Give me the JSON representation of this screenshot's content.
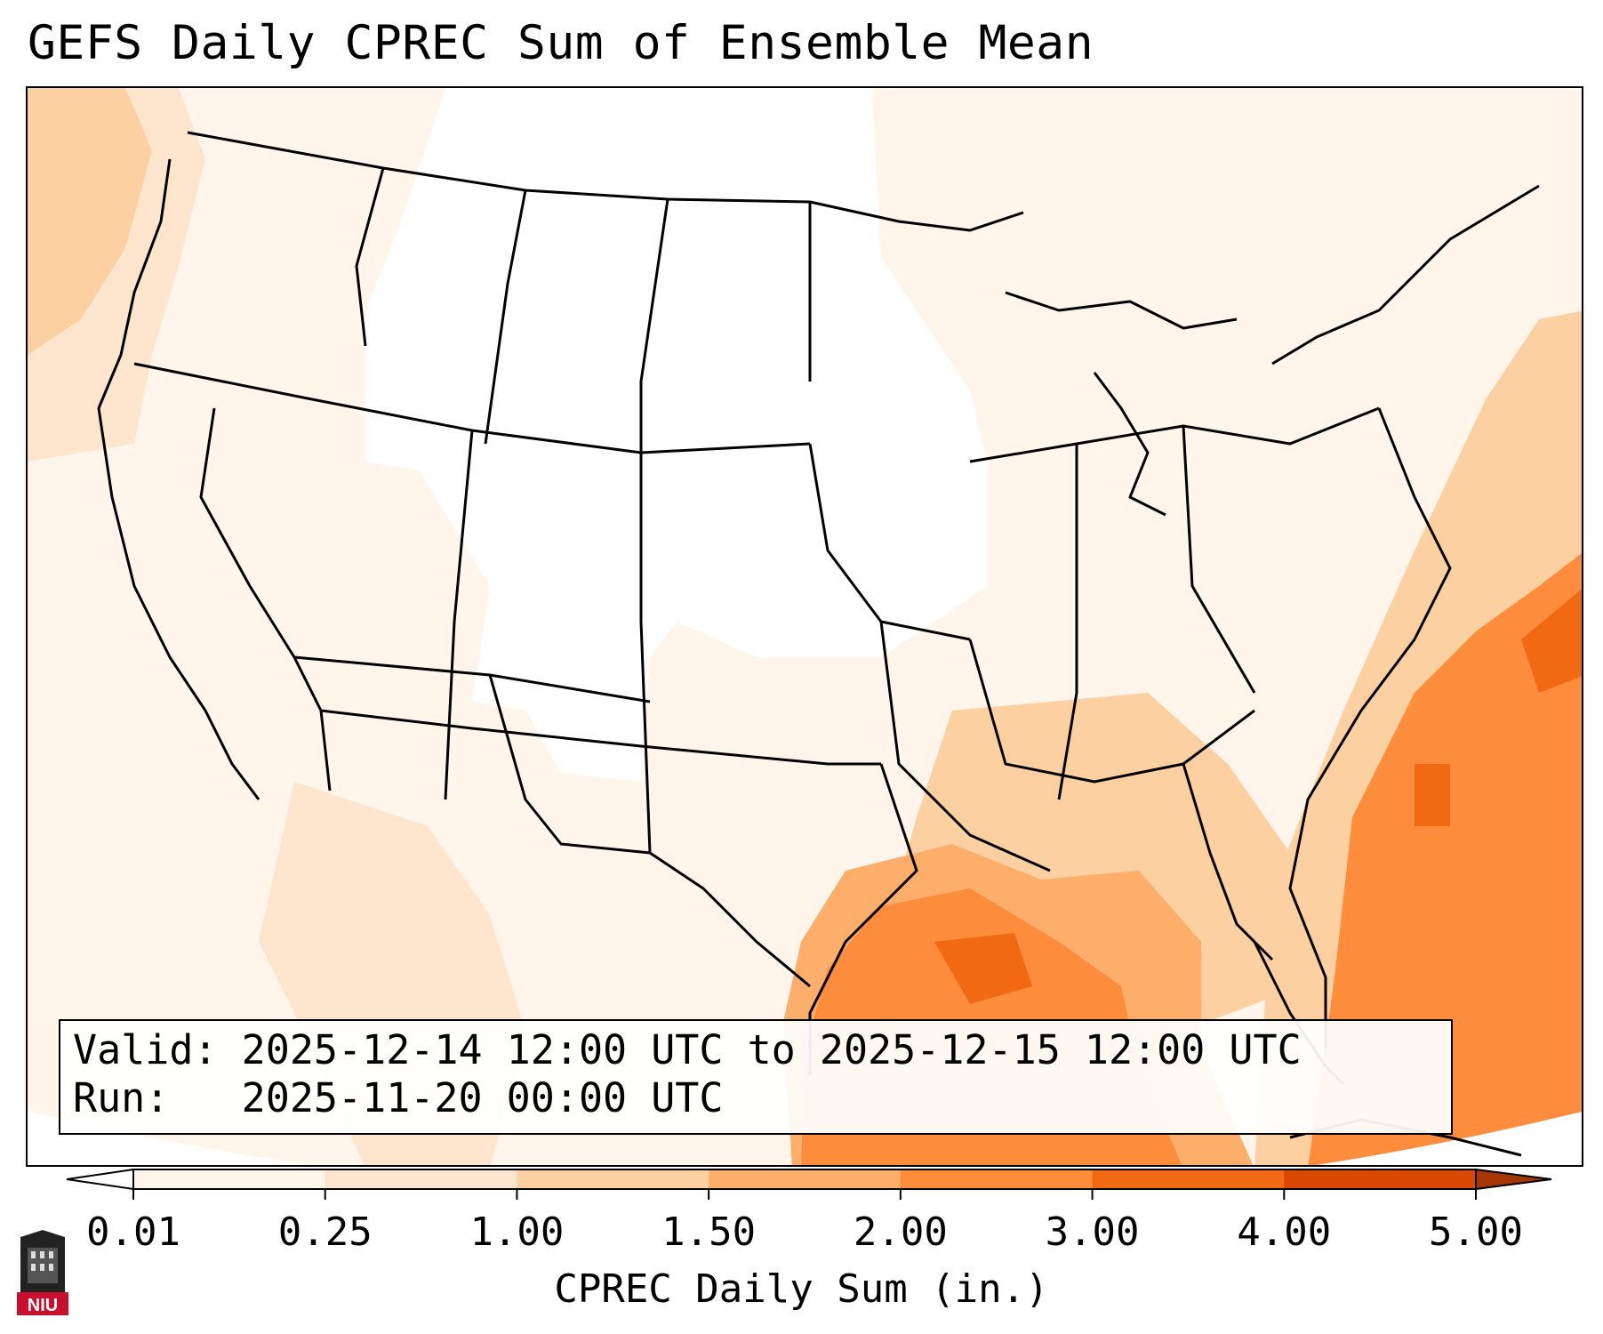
{
  "title": "GEFS Daily CPREC Sum of Ensemble Mean",
  "valid_line": "Valid: 2025-12-14 12:00 UTC to 2025-12-15 12:00 UTC",
  "run_line": "Run:   2025-11-20 00:00 UTC",
  "colorbar": {
    "label": "CPREC Daily Sum (in.)",
    "ticks": [
      "0.01",
      "0.25",
      "1.00",
      "1.50",
      "2.00",
      "3.00",
      "4.00",
      "5.00"
    ],
    "colors": [
      "#fff5eb",
      "#fee6ce",
      "#fdd0a2",
      "#fdae6b",
      "#fd8d3c",
      "#f16913",
      "#d94801"
    ],
    "under_color": "#ffffff",
    "over_color": "#a63603"
  },
  "logo": {
    "text": "NIU",
    "color": "#c8102e"
  }
}
